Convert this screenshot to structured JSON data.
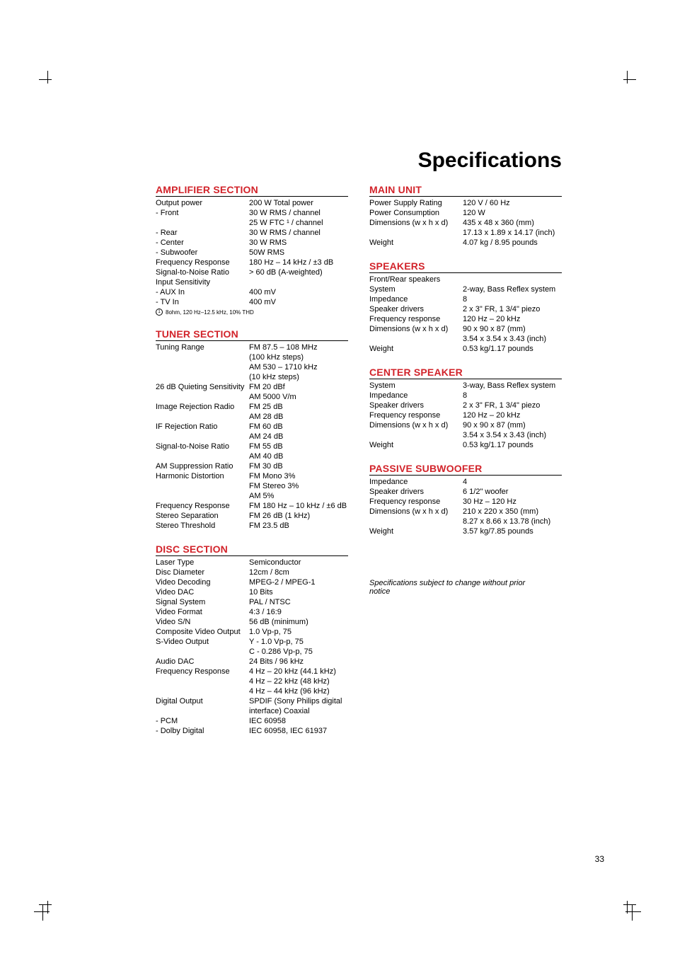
{
  "page_title": "Specifications",
  "page_number": "33",
  "subject_note": "Specifications subject to change without prior notice",
  "colors": {
    "accent_red": "#d2232a",
    "text": "#000000",
    "bg": "#ffffff",
    "rule": "#000000"
  },
  "fonts": {
    "family": "Gill Sans / Helvetica",
    "title_pt": 30,
    "section_pt": 14,
    "body_pt": 11,
    "note_pt": 8
  },
  "amplifier": {
    "title": "AMPLIFIER SECTION",
    "rows": [
      {
        "label": "Output power",
        "value": "200 W Total power"
      },
      {
        "label": "- Front",
        "value": "30 W RMS / channel"
      },
      {
        "label": "",
        "value": "25 W FTC ¹ / channel"
      },
      {
        "label": "- Rear",
        "value": "30 W RMS / channel"
      },
      {
        "label": "- Center",
        "value": "30 W RMS"
      },
      {
        "label": "- Subwoofer",
        "value": "50W RMS"
      },
      {
        "label": "Frequency Response",
        "value": "180 Hz – 14 kHz / ±3 dB"
      },
      {
        "label": "Signal-to-Noise Ratio",
        "value": "> 60 dB (A-weighted)"
      },
      {
        "label": "Input Sensitivity",
        "value": ""
      },
      {
        "label": "- AUX In",
        "value": "400 mV"
      },
      {
        "label": "- TV In",
        "value": "400 mV"
      }
    ],
    "footnote_num": "1",
    "footnote": "8ohm, 120 Hz–12.5 kHz, 10% THD"
  },
  "tuner": {
    "title": "TUNER SECTION",
    "rows": [
      {
        "label": "Tuning Range",
        "value": "FM 87.5 – 108 MHz"
      },
      {
        "label": "",
        "value": "(100 kHz steps)"
      },
      {
        "label": "",
        "value": "AM 530 – 1710 kHz"
      },
      {
        "label": "",
        "value": "(10 kHz steps)"
      },
      {
        "label": "26 dB Quieting Sensitivity",
        "value": "FM 20 dBf"
      },
      {
        "label": "",
        "value": "AM 5000   V/m"
      },
      {
        "label": "Image Rejection Radio",
        "value": "FM 25 dB"
      },
      {
        "label": "",
        "value": "AM 28 dB"
      },
      {
        "label": "IF Rejection Ratio",
        "value": "FM 60 dB"
      },
      {
        "label": "",
        "value": "AM 24 dB"
      },
      {
        "label": "Signal-to-Noise Ratio",
        "value": "FM 55 dB"
      },
      {
        "label": "",
        "value": "AM 40 dB"
      },
      {
        "label": "AM Suppression Ratio",
        "value": "FM 30 dB"
      },
      {
        "label": "Harmonic Distortion",
        "value": "FM Mono 3%"
      },
      {
        "label": "",
        "value": "FM Stereo 3%"
      },
      {
        "label": "",
        "value": "AM 5%"
      },
      {
        "label": "Frequency Response",
        "value": "FM 180 Hz – 10 kHz / ±6 dB"
      },
      {
        "label": "Stereo Separation",
        "value": "FM 26 dB (1 kHz)"
      },
      {
        "label": "Stereo Threshold",
        "value": "FM 23.5 dB"
      }
    ]
  },
  "disc": {
    "title": "DISC SECTION",
    "rows": [
      {
        "label": "Laser Type",
        "value": "Semiconductor"
      },
      {
        "label": "Disc Diameter",
        "value": "12cm / 8cm"
      },
      {
        "label": "Video Decoding",
        "value": "MPEG-2 / MPEG-1"
      },
      {
        "label": "Video DAC",
        "value": "10 Bits"
      },
      {
        "label": "Signal System",
        "value": "PAL / NTSC"
      },
      {
        "label": "Video Format",
        "value": "4:3 / 16:9"
      },
      {
        "label": "Video S/N",
        "value": "56 dB (minimum)"
      },
      {
        "label": "Composite Video Output",
        "value": "1.0 Vp-p, 75"
      },
      {
        "label": "S-Video Output",
        "value": "Y - 1.0 Vp-p, 75"
      },
      {
        "label": "",
        "value": "C - 0.286 Vp-p, 75"
      },
      {
        "label": "Audio DAC",
        "value": "24 Bits / 96 kHz"
      },
      {
        "label": "Frequency Response",
        "value": "4 Hz – 20 kHz (44.1 kHz)"
      },
      {
        "label": "",
        "value": "4 Hz – 22 kHz (48 kHz)"
      },
      {
        "label": "",
        "value": "4 Hz – 44 kHz (96 kHz)"
      },
      {
        "label": "Digital Output",
        "value": "SPDIF (Sony Philips digital interface) Coaxial"
      },
      {
        "label": "- PCM",
        "value": "IEC 60958"
      },
      {
        "label": "- Dolby Digital",
        "value": "IEC 60958, IEC 61937"
      }
    ]
  },
  "main_unit": {
    "title": "MAIN UNIT",
    "rows": [
      {
        "label": "Power Supply Rating",
        "value": "120 V / 60 Hz"
      },
      {
        "label": "Power Consumption",
        "value": "120 W"
      },
      {
        "label": "Dimensions (w x h x d)",
        "value": "435 x 48 x 360 (mm)"
      },
      {
        "label": "",
        "value": "17.13 x 1.89 x 14.17 (inch)"
      },
      {
        "label": "Weight",
        "value": "4.07 kg / 8.95 pounds"
      }
    ]
  },
  "speakers": {
    "title": "SPEAKERS",
    "rows": [
      {
        "label": "Front/Rear speakers",
        "value": ""
      },
      {
        "label": "System",
        "value": "2-way, Bass Reflex system"
      },
      {
        "label": "Impedance",
        "value": "8"
      },
      {
        "label": "Speaker drivers",
        "value": "2 x 3\" FR, 1 3/4\" piezo"
      },
      {
        "label": "Frequency response",
        "value": "120 Hz – 20 kHz"
      },
      {
        "label": "Dimensions (w x h x d)",
        "value": "90 x 90 x 87 (mm)"
      },
      {
        "label": "",
        "value": "3.54 x 3.54 x 3.43 (inch)"
      },
      {
        "label": "Weight",
        "value": "0.53 kg/1.17 pounds"
      }
    ]
  },
  "center_speaker": {
    "title": "CENTER SPEAKER",
    "rows": [
      {
        "label": "System",
        "value": "3-way, Bass Reflex system"
      },
      {
        "label": "Impedance",
        "value": "8"
      },
      {
        "label": "Speaker drivers",
        "value": "2 x 3\" FR, 1 3/4\" piezo"
      },
      {
        "label": "Frequency response",
        "value": "120 Hz – 20 kHz"
      },
      {
        "label": "Dimensions (w x h x d)",
        "value": "90 x 90 x 87 (mm)"
      },
      {
        "label": "",
        "value": "3.54 x 3.54 x 3.43 (inch)"
      },
      {
        "label": "Weight",
        "value": "0.53 kg/1.17 pounds"
      }
    ]
  },
  "passive_sub": {
    "title": "PASSIVE SUBWOOFER",
    "rows": [
      {
        "label": "Impedance",
        "value": "4"
      },
      {
        "label": "Speaker drivers",
        "value": "6 1/2\" woofer"
      },
      {
        "label": "Frequency response",
        "value": "30 Hz – 120 Hz"
      },
      {
        "label": "Dimensions (w x h x d)",
        "value": "210 x 220 x 350 (mm)"
      },
      {
        "label": "",
        "value": "8.27 x 8.66 x 13.78 (inch)"
      },
      {
        "label": "Weight",
        "value": "3.57 kg/7.85 pounds"
      }
    ]
  }
}
